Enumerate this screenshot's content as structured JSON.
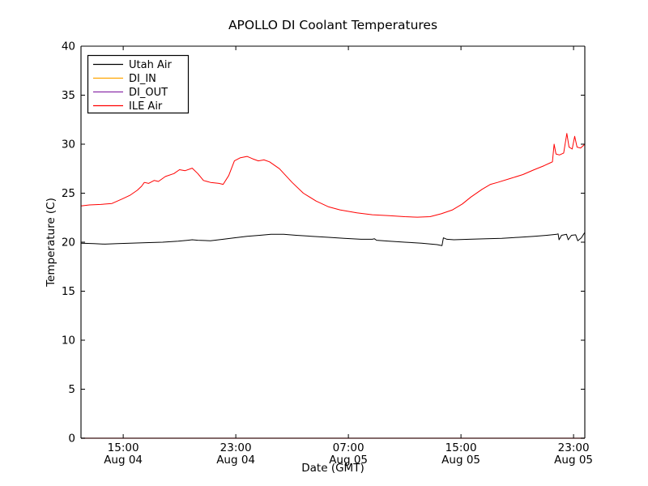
{
  "chart_data": {
    "type": "line",
    "title": "APOLLO DI Coolant Temperatures",
    "xlabel": "Date (GMT)",
    "ylabel": "Temperature (C)",
    "x_unit_note": "hours since Aug 04 12:00 GMT",
    "xlim": [
      0,
      35.8
    ],
    "ylim": [
      0,
      40
    ],
    "grid": false,
    "yticks": [
      {
        "v": 0,
        "label": "0"
      },
      {
        "v": 5,
        "label": "5"
      },
      {
        "v": 10,
        "label": "10"
      },
      {
        "v": 15,
        "label": "15"
      },
      {
        "v": 20,
        "label": "20"
      },
      {
        "v": 25,
        "label": "25"
      },
      {
        "v": 30,
        "label": "30"
      },
      {
        "v": 35,
        "label": "35"
      },
      {
        "v": 40,
        "label": "40"
      }
    ],
    "xticks": [
      {
        "h": 3,
        "time": "15:00",
        "date": "Aug 04"
      },
      {
        "h": 11,
        "time": "23:00",
        "date": "Aug 04"
      },
      {
        "h": 19,
        "time": "07:00",
        "date": "Aug 05"
      },
      {
        "h": 27,
        "time": "15:00",
        "date": "Aug 05"
      },
      {
        "h": 35,
        "time": "23:00",
        "date": "Aug 05"
      }
    ],
    "legend": {
      "position": "upper-left",
      "entries": [
        {
          "name": "Utah Air",
          "color": "#000000"
        },
        {
          "name": "DI_IN",
          "color": "#ffa500"
        },
        {
          "name": "DI_OUT",
          "color": "#8b2fa8"
        },
        {
          "name": "ILE Air",
          "color": "#ff0000"
        }
      ]
    },
    "bottom_spine_blend_color": "#5a3838",
    "series": [
      {
        "name": "Utah Air",
        "color": "#000000",
        "points": [
          [
            0,
            19.9
          ],
          [
            0.9,
            19.85
          ],
          [
            1.7,
            19.8
          ],
          [
            2.6,
            19.85
          ],
          [
            3.5,
            19.9
          ],
          [
            4.6,
            19.95
          ],
          [
            5.8,
            20.0
          ],
          [
            6.9,
            20.1
          ],
          [
            7.6,
            20.2
          ],
          [
            7.9,
            20.25
          ],
          [
            8.3,
            20.2
          ],
          [
            9.2,
            20.15
          ],
          [
            10.1,
            20.3
          ],
          [
            10.9,
            20.45
          ],
          [
            11.8,
            20.6
          ],
          [
            12.7,
            20.7
          ],
          [
            13.5,
            20.8
          ],
          [
            14.4,
            20.8
          ],
          [
            15.3,
            20.7
          ],
          [
            16.4,
            20.6
          ],
          [
            17.6,
            20.5
          ],
          [
            18.7,
            20.4
          ],
          [
            19.9,
            20.3
          ],
          [
            20.7,
            20.3
          ],
          [
            20.85,
            20.35
          ],
          [
            21.0,
            20.2
          ],
          [
            21.9,
            20.1
          ],
          [
            23.0,
            20.0
          ],
          [
            24.2,
            19.9
          ],
          [
            25.3,
            19.75
          ],
          [
            25.65,
            19.65
          ],
          [
            25.75,
            20.45
          ],
          [
            26.0,
            20.3
          ],
          [
            26.5,
            20.25
          ],
          [
            27.6,
            20.3
          ],
          [
            28.8,
            20.35
          ],
          [
            29.9,
            20.4
          ],
          [
            31.1,
            20.5
          ],
          [
            32.2,
            20.6
          ],
          [
            33.1,
            20.7
          ],
          [
            33.8,
            20.8
          ],
          [
            33.9,
            20.85
          ],
          [
            33.97,
            20.25
          ],
          [
            34.15,
            20.7
          ],
          [
            34.5,
            20.8
          ],
          [
            34.62,
            20.25
          ],
          [
            34.85,
            20.7
          ],
          [
            35.15,
            20.75
          ],
          [
            35.3,
            20.15
          ],
          [
            35.55,
            20.45
          ],
          [
            35.8,
            21.0
          ]
        ]
      },
      {
        "name": "DI_IN",
        "color": "#ffa500",
        "points": [
          [
            0,
            0
          ],
          [
            35.8,
            0
          ]
        ]
      },
      {
        "name": "DI_OUT",
        "color": "#8b2fa8",
        "points": [
          [
            0,
            0
          ],
          [
            35.8,
            0
          ]
        ]
      },
      {
        "name": "ILE Air",
        "color": "#ff0000",
        "points": [
          [
            0,
            23.7
          ],
          [
            0.6,
            23.8
          ],
          [
            1.4,
            23.85
          ],
          [
            2.2,
            23.95
          ],
          [
            2.9,
            24.4
          ],
          [
            3.5,
            24.8
          ],
          [
            4.0,
            25.3
          ],
          [
            4.3,
            25.7
          ],
          [
            4.5,
            26.1
          ],
          [
            4.8,
            26.0
          ],
          [
            5.2,
            26.3
          ],
          [
            5.5,
            26.2
          ],
          [
            6.0,
            26.7
          ],
          [
            6.6,
            27.0
          ],
          [
            7.0,
            27.4
          ],
          [
            7.4,
            27.3
          ],
          [
            7.9,
            27.55
          ],
          [
            8.3,
            27.0
          ],
          [
            8.7,
            26.3
          ],
          [
            9.2,
            26.1
          ],
          [
            9.8,
            26.0
          ],
          [
            10.1,
            25.9
          ],
          [
            10.5,
            26.8
          ],
          [
            10.9,
            28.3
          ],
          [
            11.3,
            28.6
          ],
          [
            11.8,
            28.75
          ],
          [
            12.2,
            28.5
          ],
          [
            12.6,
            28.3
          ],
          [
            13.0,
            28.4
          ],
          [
            13.4,
            28.2
          ],
          [
            14.1,
            27.5
          ],
          [
            15.0,
            26.1
          ],
          [
            15.8,
            25.0
          ],
          [
            16.7,
            24.2
          ],
          [
            17.6,
            23.6
          ],
          [
            18.4,
            23.3
          ],
          [
            19.6,
            23.0
          ],
          [
            20.7,
            22.8
          ],
          [
            21.9,
            22.7
          ],
          [
            23.0,
            22.6
          ],
          [
            23.9,
            22.55
          ],
          [
            24.8,
            22.6
          ],
          [
            25.6,
            22.9
          ],
          [
            26.4,
            23.3
          ],
          [
            27.1,
            23.9
          ],
          [
            27.7,
            24.6
          ],
          [
            28.5,
            25.4
          ],
          [
            29.1,
            25.9
          ],
          [
            29.6,
            26.1
          ],
          [
            30.5,
            26.5
          ],
          [
            31.4,
            26.9
          ],
          [
            32.2,
            27.4
          ],
          [
            32.9,
            27.8
          ],
          [
            33.35,
            28.1
          ],
          [
            33.5,
            28.2
          ],
          [
            33.62,
            30.0
          ],
          [
            33.75,
            29.0
          ],
          [
            34.0,
            28.9
          ],
          [
            34.3,
            29.1
          ],
          [
            34.52,
            31.1
          ],
          [
            34.68,
            29.7
          ],
          [
            34.9,
            29.5
          ],
          [
            35.08,
            30.8
          ],
          [
            35.25,
            29.7
          ],
          [
            35.5,
            29.6
          ],
          [
            35.8,
            30.0
          ]
        ]
      }
    ]
  }
}
